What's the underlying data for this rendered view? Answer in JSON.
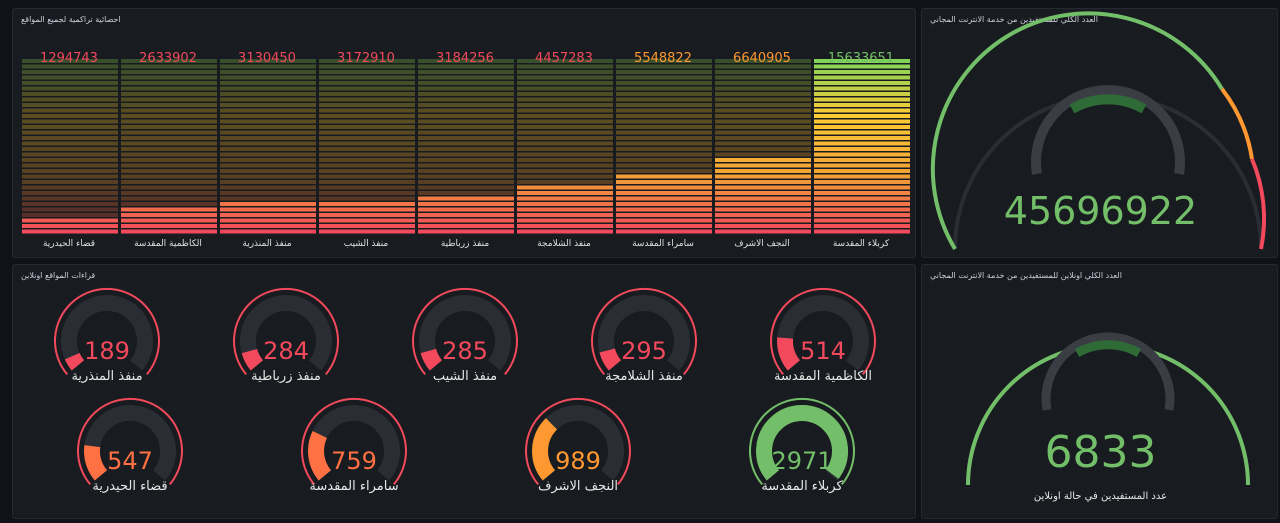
{
  "bar_panel": {
    "title": "احصائية تراكمية لجميع المواقع",
    "max": 15633651,
    "bars": [
      {
        "label": "قضاء الحيدرية",
        "value": "1294743",
        "num": 1294743
      },
      {
        "label": "الكاظمية المقدسة",
        "value": "2633902",
        "num": 2633902
      },
      {
        "label": "منفذ المنذرية",
        "value": "3130450",
        "num": 3130450
      },
      {
        "label": "منفذ الشيب",
        "value": "3172910",
        "num": 3172910
      },
      {
        "label": "منفذ زرباطية",
        "value": "3184256",
        "num": 3184256
      },
      {
        "label": "منفذ الشلامجة",
        "value": "4457283",
        "num": 4457283
      },
      {
        "label": "سامراء المقدسة",
        "value": "5548822",
        "num": 5548822
      },
      {
        "label": "النجف الاشرف",
        "value": "6640905",
        "num": 6640905
      },
      {
        "label": "كربلاء المقدسة",
        "value": "15633651",
        "num": 15633651
      }
    ]
  },
  "total_panel": {
    "title": "العدد الكلي للمستفيدين من خدمة الانترنت المجاني",
    "value": "45696922",
    "color": "#73bf69"
  },
  "online_sites_panel": {
    "title": "قراءات المواقع اونلاين",
    "gauge_max": 3000,
    "gauges": [
      {
        "label": "منفذ المنذرية",
        "value": "189",
        "num": 189,
        "color": "#f2495c"
      },
      {
        "label": "منفذ زرباطية",
        "value": "284",
        "num": 284,
        "color": "#f2495c"
      },
      {
        "label": "منفذ الشيب",
        "value": "285",
        "num": 285,
        "color": "#f2495c"
      },
      {
        "label": "منفذ الشلامجة",
        "value": "295",
        "num": 295,
        "color": "#f2495c"
      },
      {
        "label": "الكاظمية المقدسة",
        "value": "514",
        "num": 514,
        "color": "#f2495c"
      },
      {
        "label": "قضاء الحيدرية",
        "value": "547",
        "num": 547,
        "color": "#ff7043"
      },
      {
        "label": "سامراء المقدسة",
        "value": "759",
        "num": 759,
        "color": "#ff7043"
      },
      {
        "label": "النجف الاشرف",
        "value": "989",
        "num": 989,
        "color": "#ff9830"
      },
      {
        "label": "كربلاء المقدسة",
        "value": "2971",
        "num": 2971,
        "color": "#73bf69"
      }
    ]
  },
  "online_total_panel": {
    "title": "العدد الكلي اونلاين للمستفيدين من خدمة الانترنت المجاني",
    "value": "6833",
    "label": "عدد المستفيدين في حالة اونلاين",
    "color": "#73bf69"
  }
}
